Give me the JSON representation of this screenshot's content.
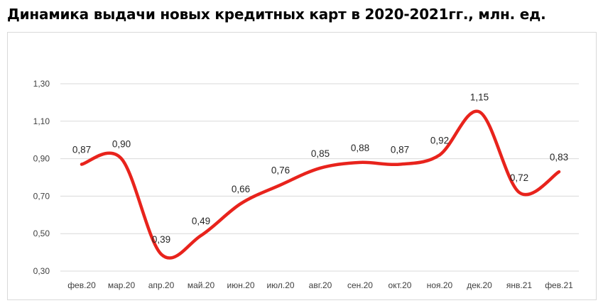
{
  "title": "Динамика выдачи новых кредитных карт в 2020-2021гг., млн. ед.",
  "chart_data": {
    "type": "line",
    "title": "Динамика выдачи новых кредитных карт в 2020-2021гг., млн. ед.",
    "categories": [
      "фев.20",
      "мар.20",
      "апр.20",
      "май.20",
      "июн.20",
      "июл.20",
      "авг.20",
      "сен.20",
      "окт.20",
      "ноя.20",
      "дек.20",
      "янв.21",
      "фев.21"
    ],
    "values": [
      0.87,
      0.9,
      0.39,
      0.49,
      0.66,
      0.76,
      0.85,
      0.88,
      0.87,
      0.92,
      1.15,
      0.72,
      0.83
    ],
    "value_labels": [
      "0,87",
      "0,90",
      "0,39",
      "0,49",
      "0,66",
      "0,76",
      "0,85",
      "0,88",
      "0,87",
      "0,92",
      "1,15",
      "0,72",
      "0,83"
    ],
    "y_ticks": [
      0.3,
      0.5,
      0.7,
      0.9,
      1.1,
      1.3
    ],
    "y_tick_labels": [
      "0,30",
      "0,50",
      "0,70",
      "0,90",
      "1,10",
      "1,30"
    ],
    "ylim": [
      0.3,
      1.3
    ],
    "grid": true,
    "smooth": true,
    "line_color": "#e8231c",
    "grid_color": "#d9d9d9"
  }
}
